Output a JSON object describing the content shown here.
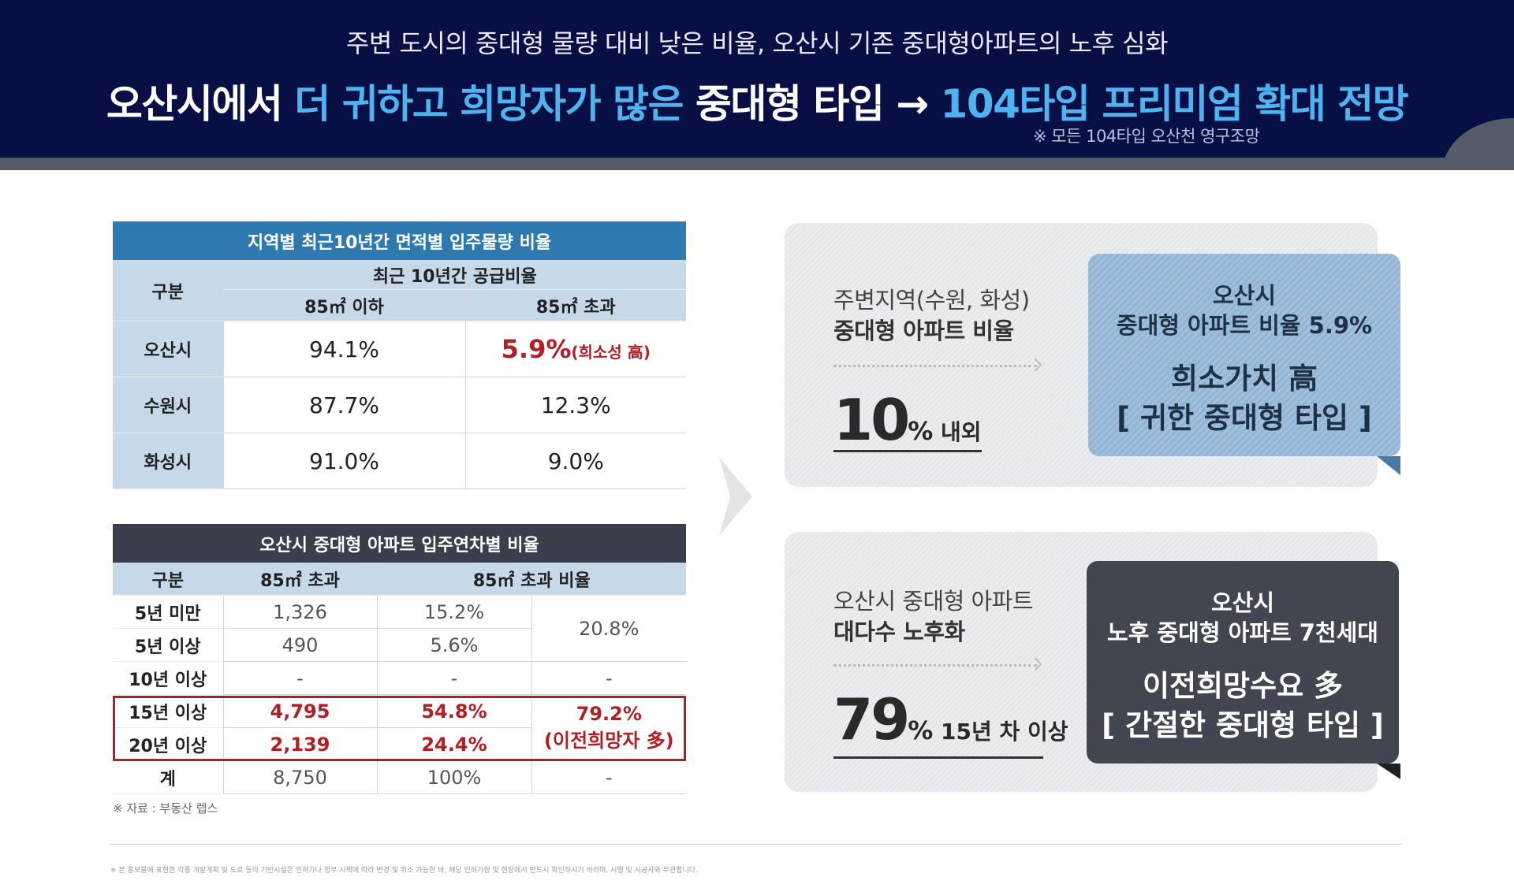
{
  "header": {
    "subtitle": "주변 도시의 중대형 물량 대비 낮은 비율, 오산시 기존 중대형아파트의 노후 심화",
    "title_part1": "오산시에서 ",
    "title_highlight1": "더 귀하고 희망자가 많은",
    "title_part2": " 중대형 타입 → ",
    "title_highlight2": "104타입 프리미엄 확대 전망",
    "note": "※ 모든 104타입 오산천 영구조망"
  },
  "table1": {
    "title": "지역별 최근10년간 면적별 입주물량 비율",
    "col_group": "구분",
    "col_header": "최근 10년간 공급비율",
    "col_a": "85㎡ 이하",
    "col_b": "85㎡ 초과",
    "rows": [
      {
        "region": "오산시",
        "a": "94.1%",
        "b": "5.9%",
        "b_note": "(희소성 高)"
      },
      {
        "region": "수원시",
        "a": "87.7%",
        "b": "12.3%"
      },
      {
        "region": "화성시",
        "a": "91.0%",
        "b": "9.0%"
      }
    ]
  },
  "table2": {
    "title": "오산시 중대형 아파트 입주연차별 비율",
    "col_group": "구분",
    "col_a": "85㎡ 초과",
    "col_b": "85㎡ 초과 비율",
    "rows": [
      {
        "label": "5년 미만",
        "count": "1,326",
        "pct": "15.2%"
      },
      {
        "label": "5년 이상",
        "count": "490",
        "pct": "5.6%"
      },
      {
        "label": "10년 이상",
        "count": "-",
        "pct": "-",
        "sum": "-"
      },
      {
        "label": "15년 이상",
        "count": "4,795",
        "pct": "54.8%"
      },
      {
        "label": "20년 이상",
        "count": "2,139",
        "pct": "24.4%"
      },
      {
        "label": "계",
        "count": "8,750",
        "pct": "100%",
        "sum": "-"
      }
    ],
    "sum_first": "20.8%",
    "sum_old_value": "79.2%",
    "sum_old_note": "(이전희망자 多)",
    "source": "※ 자료 : 부동산 렙스"
  },
  "panel1": {
    "label_line1": "주변지역(수원, 화성)",
    "label_line2": "중대형 아파트 비율",
    "big_number": "10",
    "big_unit": "%",
    "big_suffix": " 내외",
    "callout_line1": "오산시",
    "callout_line2": "중대형 아파트 비율 5.9%",
    "callout_line3": "희소가치 高",
    "callout_line4": "[ 귀한 중대형 타입 ]"
  },
  "panel2": {
    "label_line1": "오산시 중대형 아파트",
    "label_line2": "대다수 노후화",
    "big_number": "79",
    "big_unit": "%",
    "big_suffix": " 15년 차 이상",
    "callout_line1": "오산시",
    "callout_line2": "노후 중대형 아파트 7천세대",
    "callout_line3": "이전희망수요 多",
    "callout_line4": "[ 간절한 중대형 타입 ]"
  },
  "footer": {
    "note": "※ 본 홍보물에 표현한 각종 개발계획 및 도로 등의 기반시설은 인허가나 정부 시책에 따라 변경 및 취소 가능한 바, 해당 인허가청 및 현장에서 반드시 확인하시기 바라며, 시행 및 시공사와 무관합니다."
  },
  "colors": {
    "header_bg": "#070f44",
    "highlight": "#4fb3f0",
    "table1_header": "#2e7ab0",
    "table2_header": "#3b3f4b",
    "accent_red": "#b21e23",
    "callout_blue": "#93b5d6",
    "callout_dark": "#424651"
  }
}
